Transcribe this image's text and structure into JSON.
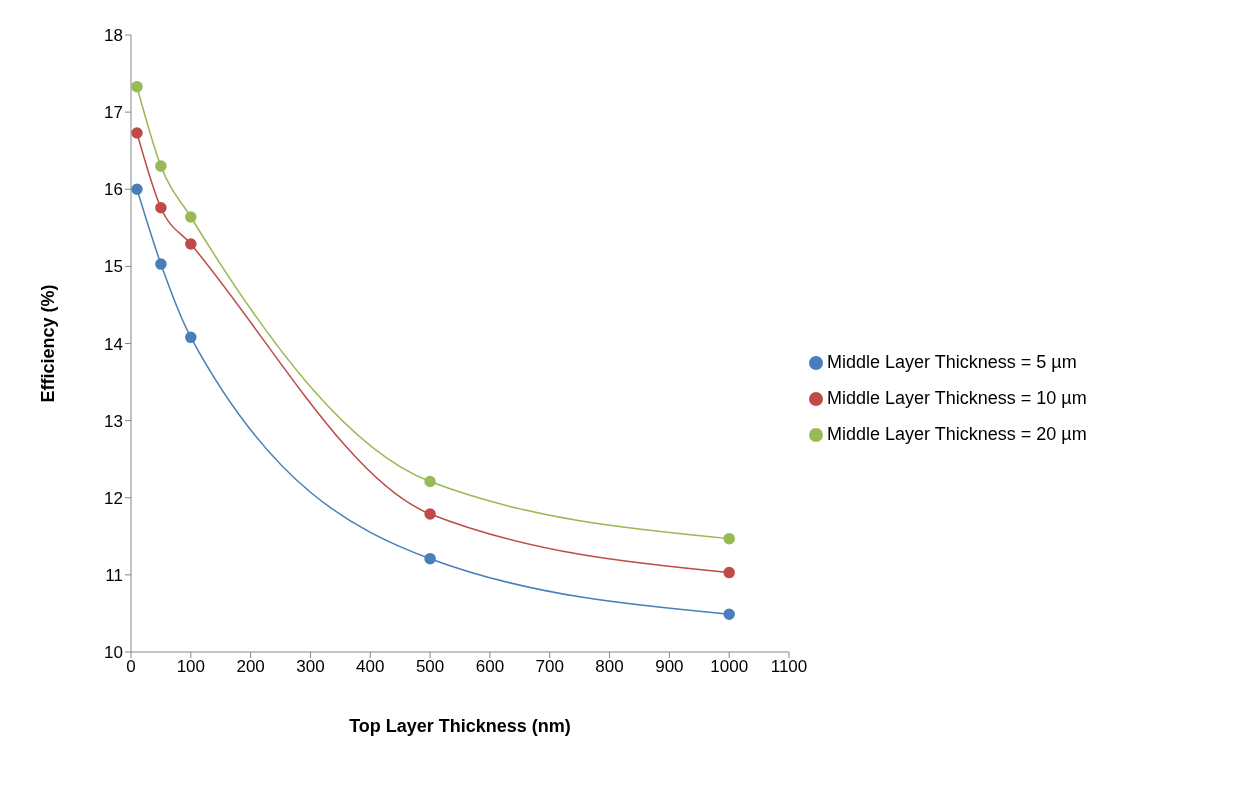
{
  "chart_data": {
    "type": "line",
    "xlabel": "Top Layer Thickness (nm)",
    "ylabel": "Efficiency (%)",
    "x": [
      10,
      50,
      100,
      500,
      1000
    ],
    "series": [
      {
        "name": "Middle Layer Thickness = 5 µm",
        "color": "#4a7ebb",
        "values": [
          16.0,
          15.03,
          14.08,
          11.21,
          10.49
        ]
      },
      {
        "name": "Middle Layer Thickness = 10 µm",
        "color": "#be4b48",
        "values": [
          16.73,
          15.76,
          15.29,
          11.79,
          11.03
        ]
      },
      {
        "name": "Middle Layer Thickness = 20 µm",
        "color": "#98b954",
        "values": [
          17.33,
          16.3,
          15.64,
          12.21,
          11.47
        ]
      }
    ],
    "xlim": [
      0,
      1100
    ],
    "xticks": [
      0,
      100,
      200,
      300,
      400,
      500,
      600,
      700,
      800,
      900,
      1000,
      1100
    ],
    "ylim": [
      10,
      18
    ],
    "yticks": [
      10,
      11,
      12,
      13,
      14,
      15,
      16,
      17,
      18
    ],
    "grid": false,
    "legend": "right",
    "marker": "circle",
    "line_style": "solid"
  }
}
